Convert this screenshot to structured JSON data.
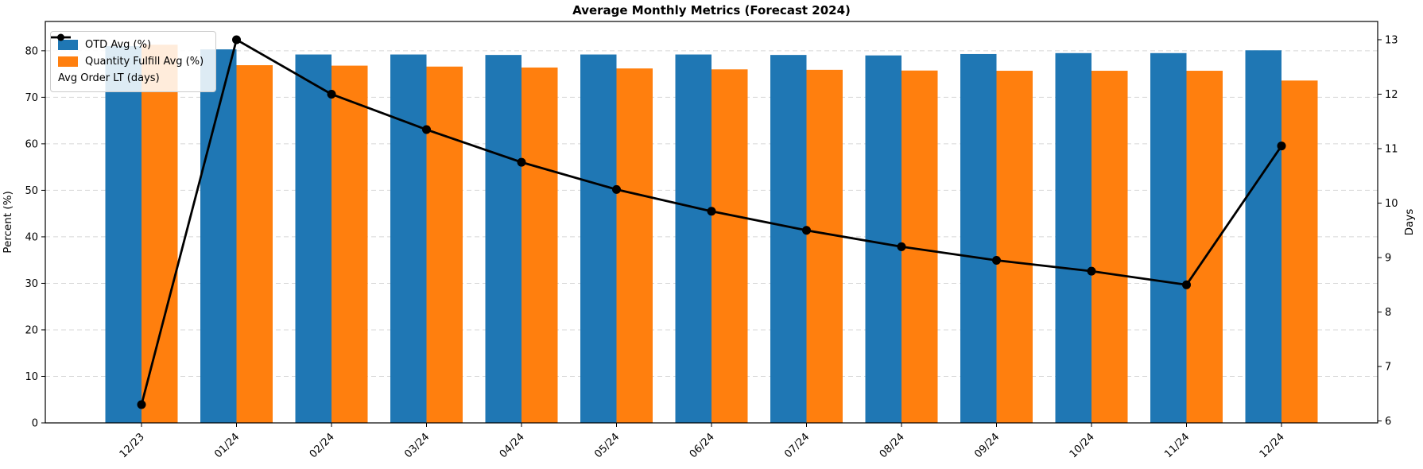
{
  "chart_data": {
    "type": "bar",
    "subtype": "grouped-bars-with-line-overlay",
    "title": "Average Monthly Metrics (Forecast 2024)",
    "categories": [
      "12/23",
      "01/24",
      "02/24",
      "03/24",
      "04/24",
      "05/24",
      "06/24",
      "07/24",
      "08/24",
      "09/24",
      "10/24",
      "11/24",
      "12/24"
    ],
    "series": [
      {
        "name": "OTD Avg (%)",
        "type": "bar",
        "axis": "left",
        "color": "#1f77b4",
        "values": [
          81.0,
          80.3,
          79.2,
          79.2,
          79.1,
          79.2,
          79.2,
          79.1,
          79.0,
          79.3,
          79.5,
          79.5,
          80.1
        ]
      },
      {
        "name": "Quantity Fulfill Avg (%)",
        "type": "bar",
        "axis": "left",
        "color": "#ff7f0e",
        "values": [
          81.3,
          76.9,
          76.8,
          76.6,
          76.4,
          76.2,
          76.0,
          75.9,
          75.75,
          75.7,
          75.7,
          75.7,
          73.6
        ]
      },
      {
        "name": "Avg Order LT (days)",
        "type": "line",
        "axis": "right",
        "color": "#000000",
        "values": [
          6.3,
          13.0,
          12.0,
          11.35,
          10.75,
          10.25,
          9.85,
          9.5,
          9.2,
          8.95,
          8.75,
          8.5,
          11.05
        ]
      }
    ],
    "left_axis": {
      "label": "Percent (%)",
      "ticks": [
        0,
        10,
        20,
        30,
        40,
        50,
        60,
        70,
        80
      ],
      "range": [
        0,
        86.3
      ]
    },
    "right_axis": {
      "label": "Days",
      "ticks": [
        6,
        7,
        8,
        9,
        10,
        11,
        12,
        13
      ],
      "range": [
        5.965,
        13.335
      ]
    },
    "x_tick_rotation": 45,
    "legend_position": "upper-left",
    "grid": {
      "axis": "y",
      "style": "dashed",
      "color": "#d8d8d8"
    }
  }
}
